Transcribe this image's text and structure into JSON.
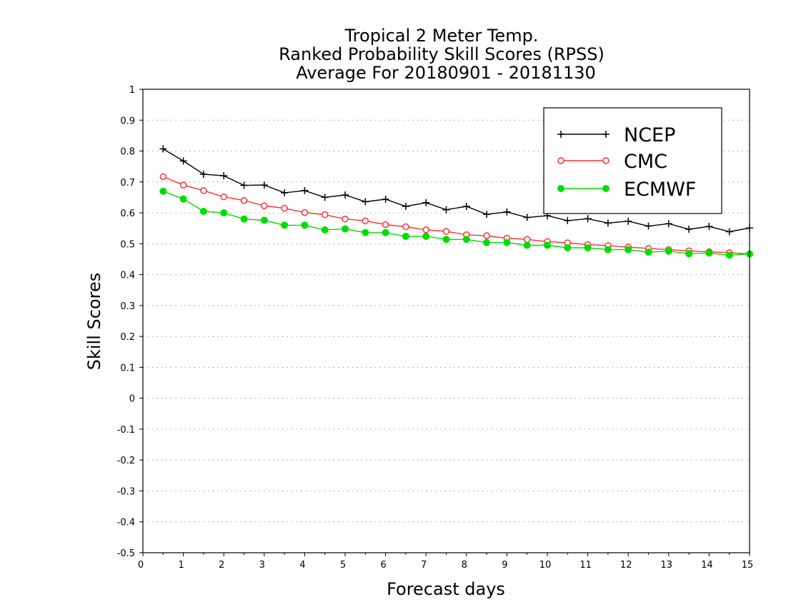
{
  "chart_data": {
    "type": "line",
    "title": [
      "Tropical 2 Meter Temp.",
      "Ranked Probability Skill Scores (RPSS)",
      "Average For 20180901 - 20181130"
    ],
    "xlabel": "Forecast days",
    "ylabel": "Skill Scores",
    "xlim": [
      0,
      15
    ],
    "ylim": [
      -0.5,
      1
    ],
    "x_ticks": [
      "0",
      "1",
      "2",
      "3",
      "4",
      "5",
      "6",
      "7",
      "8",
      "9",
      "10",
      "11",
      "12",
      "13",
      "14",
      "15"
    ],
    "y_ticks": [
      "-0.5",
      "-0.4",
      "-0.3",
      "-0.2",
      "-0.1",
      "0",
      "0.1",
      "0.2",
      "0.3",
      "0.4",
      "0.5",
      "0.6",
      "0.7",
      "0.8",
      "0.9",
      "1"
    ],
    "grid": "horizontal dotted",
    "legend_position": "top-right",
    "x": [
      0.5,
      1,
      1.5,
      2,
      2.5,
      3,
      3.5,
      4,
      4.5,
      5,
      5.5,
      6,
      6.5,
      7,
      7.5,
      8,
      8.5,
      9,
      9.5,
      10,
      10.5,
      11,
      11.5,
      12,
      12.5,
      13,
      13.5,
      14,
      14.5,
      15
    ],
    "series": [
      {
        "name": "NCEP",
        "color": "#000000",
        "marker": "plus",
        "values": [
          0.807,
          0.768,
          0.725,
          0.72,
          0.689,
          0.69,
          0.665,
          0.672,
          0.65,
          0.658,
          0.636,
          0.644,
          0.621,
          0.633,
          0.61,
          0.621,
          0.595,
          0.603,
          0.585,
          0.591,
          0.575,
          0.581,
          0.567,
          0.573,
          0.557,
          0.565,
          0.547,
          0.556,
          0.539,
          0.551
        ]
      },
      {
        "name": "CMC",
        "color": "#ff3030",
        "marker": "open-circle",
        "values": [
          0.717,
          0.69,
          0.672,
          0.652,
          0.64,
          0.623,
          0.615,
          0.601,
          0.594,
          0.58,
          0.574,
          0.562,
          0.555,
          0.545,
          0.54,
          0.529,
          0.526,
          0.518,
          0.514,
          0.507,
          0.503,
          0.497,
          0.494,
          0.489,
          0.485,
          0.481,
          0.477,
          0.474,
          0.471,
          0.467
        ]
      },
      {
        "name": "ECMWF",
        "color": "#00dd00",
        "marker": "filled-circle",
        "values": [
          0.67,
          0.645,
          0.605,
          0.6,
          0.58,
          0.576,
          0.56,
          0.56,
          0.545,
          0.548,
          0.536,
          0.536,
          0.524,
          0.524,
          0.514,
          0.514,
          0.504,
          0.504,
          0.495,
          0.495,
          0.487,
          0.487,
          0.481,
          0.481,
          0.473,
          0.476,
          0.468,
          0.47,
          0.463,
          0.467
        ]
      }
    ]
  }
}
